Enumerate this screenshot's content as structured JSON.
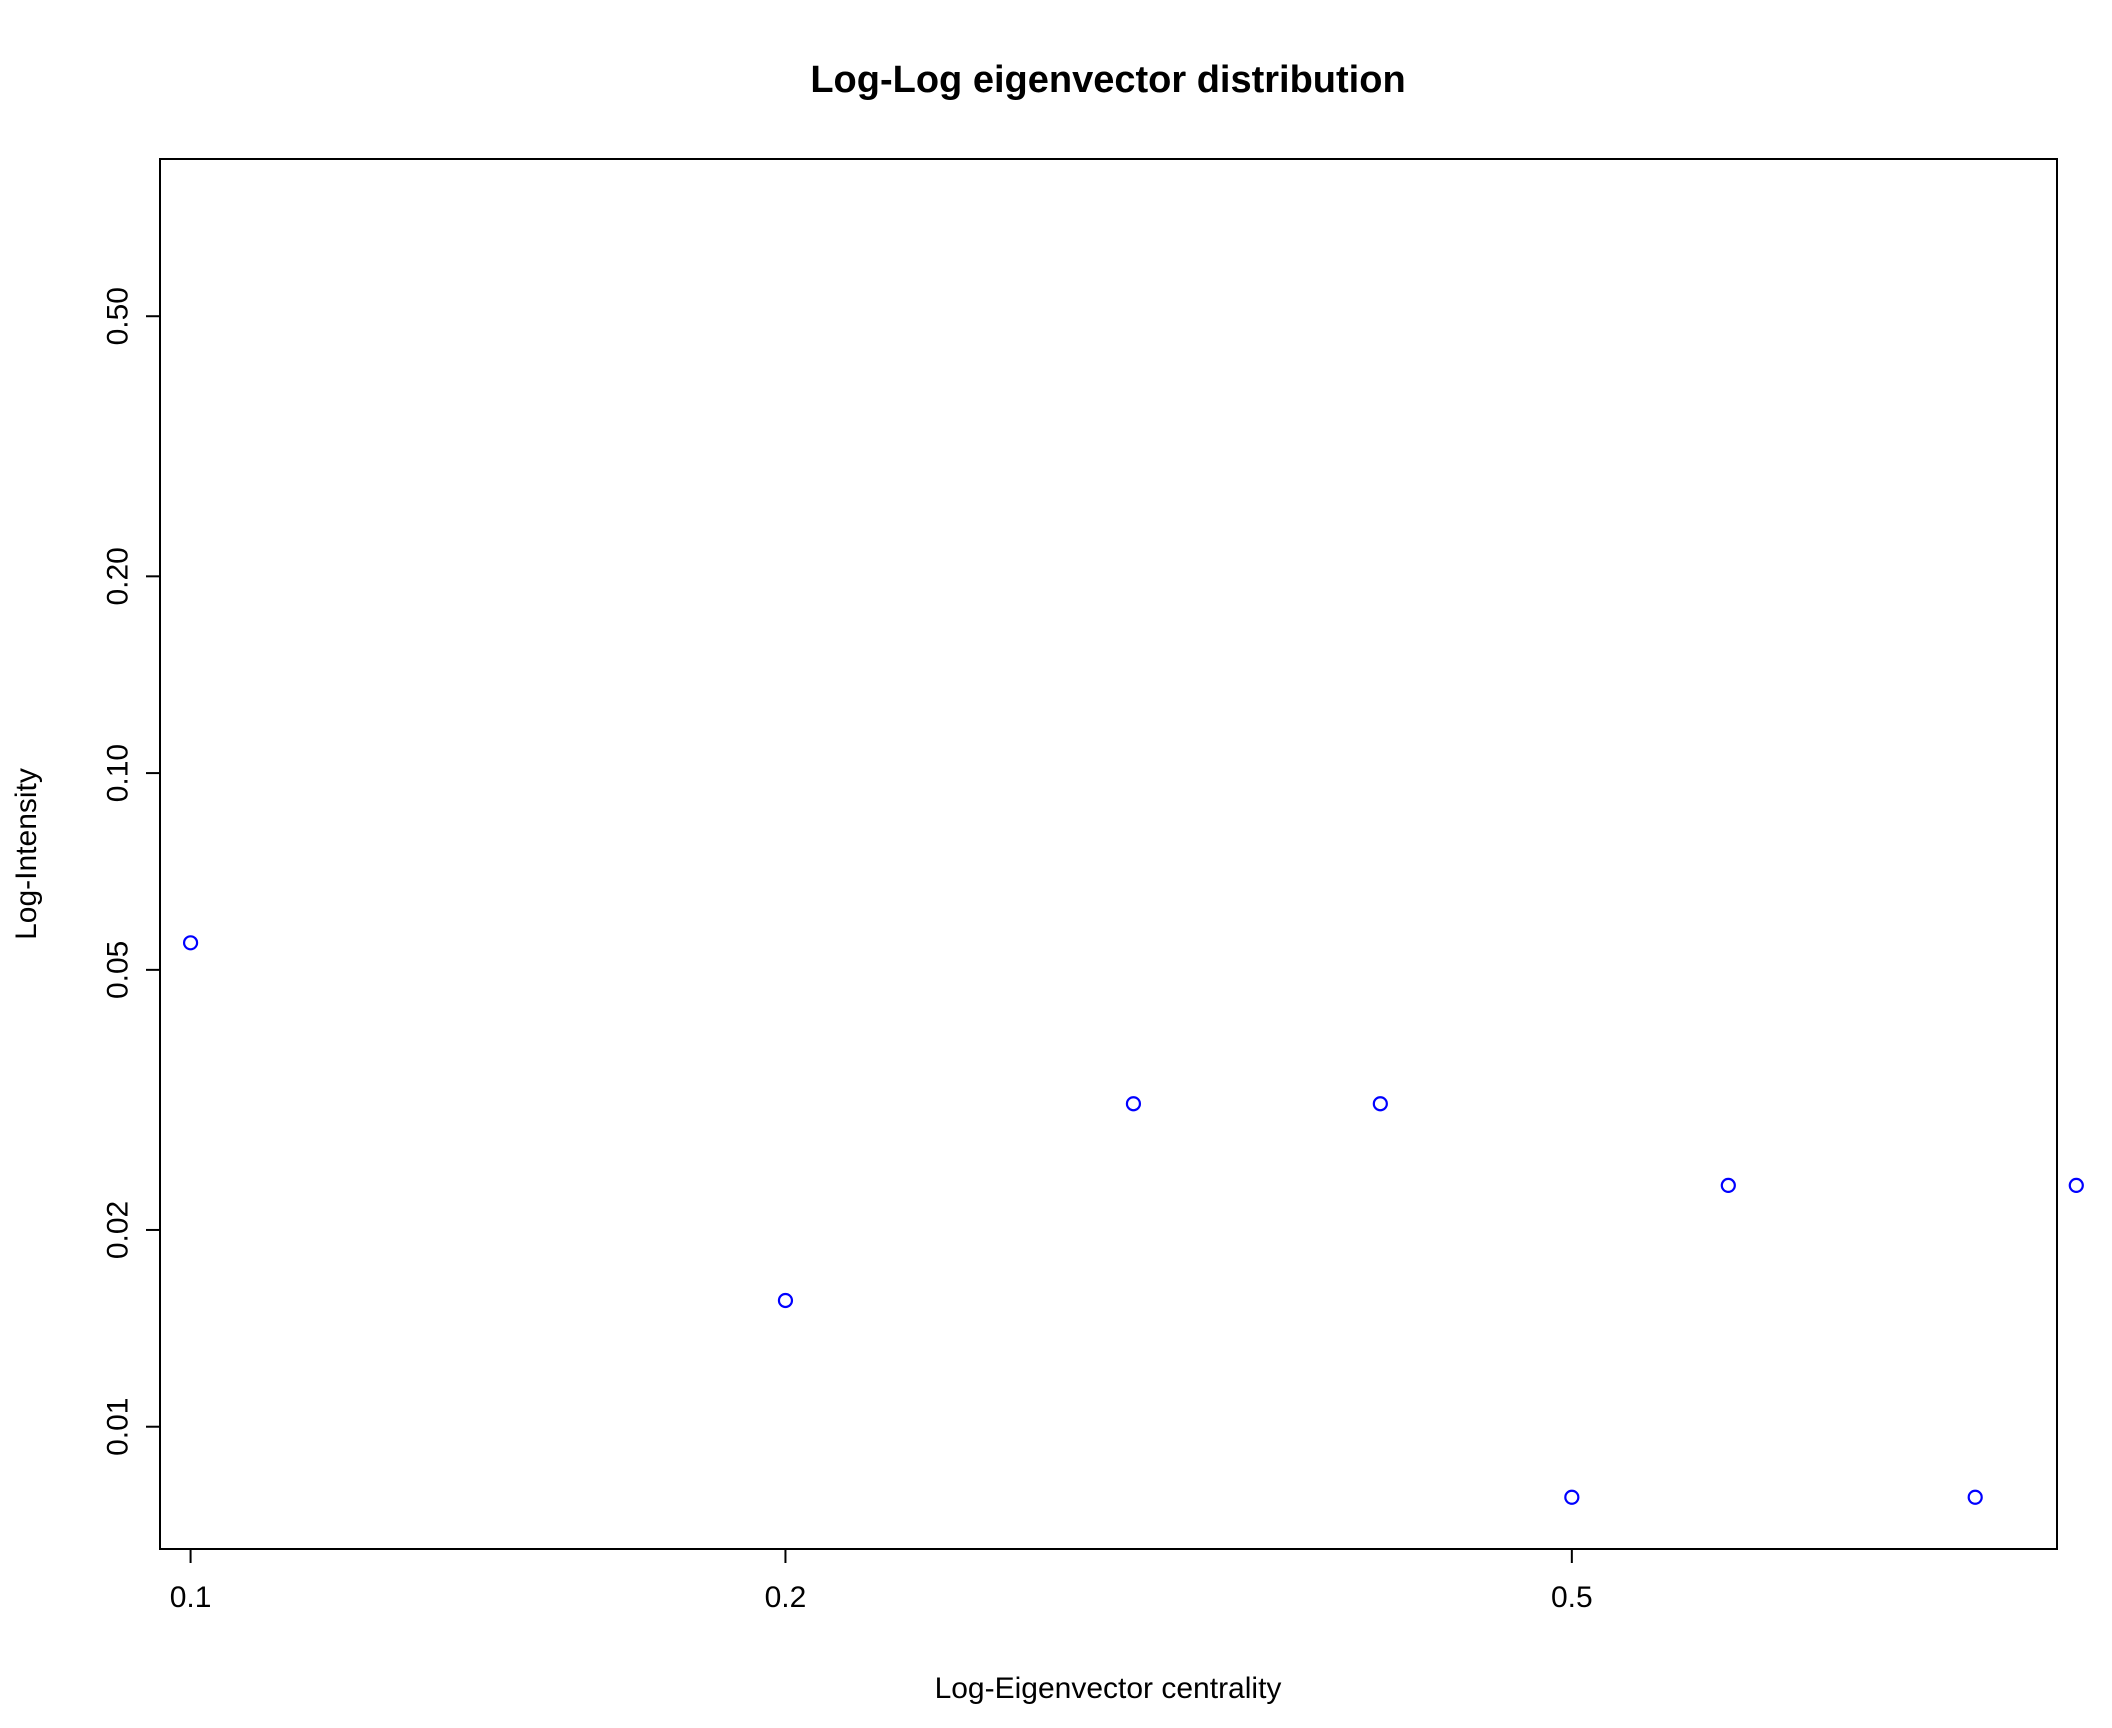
{
  "chart_data": {
    "type": "scatter",
    "title": "Log-Log eigenvector distribution",
    "xlabel": "Log-Eigenvector centrality",
    "ylabel": "Log-Intensity",
    "x_scale": "log",
    "y_scale": "log",
    "xlim": [
      0.0965,
      0.88
    ],
    "ylim": [
      0.0065,
      0.87
    ],
    "x_ticks": [
      {
        "value": 0.1,
        "label": "0.1"
      },
      {
        "value": 0.2,
        "label": "0.2"
      },
      {
        "value": 0.5,
        "label": "0.5"
      }
    ],
    "y_ticks": [
      {
        "value": 0.01,
        "label": "0.01"
      },
      {
        "value": 0.02,
        "label": "0.02"
      },
      {
        "value": 0.05,
        "label": "0.05"
      },
      {
        "value": 0.1,
        "label": "0.10"
      },
      {
        "value": 0.2,
        "label": "0.20"
      },
      {
        "value": 0.5,
        "label": "0.50"
      }
    ],
    "grid": false,
    "marker": "open-circle",
    "marker_color": "#0000ff",
    "series": [
      {
        "x": [
          0.1,
          0.2,
          0.3,
          0.4,
          0.5,
          0.6,
          0.8,
          0.9
        ],
        "y": [
          0.055,
          0.0156,
          0.0312,
          0.0312,
          0.0078,
          0.0234,
          0.0078,
          0.0234
        ]
      }
    ]
  }
}
